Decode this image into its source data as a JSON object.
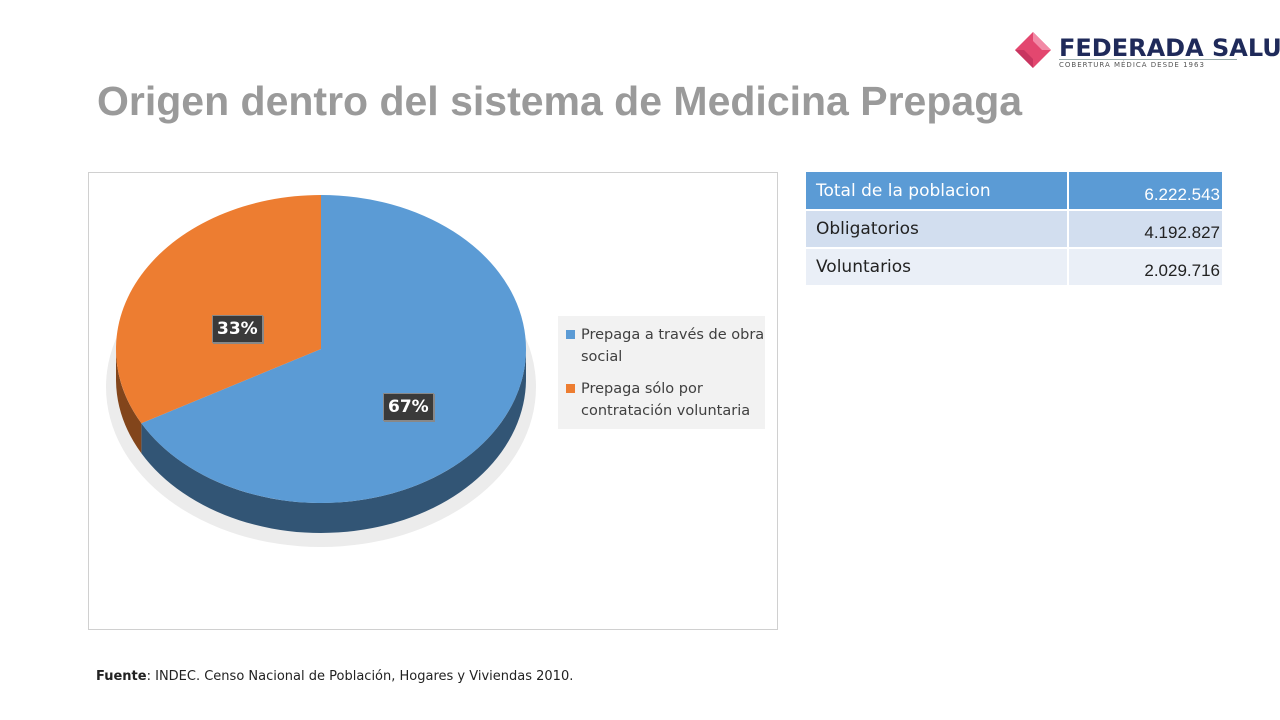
{
  "title": "Origen dentro del sistema de Medicina Prepaga",
  "logo": {
    "name": "FEDERADA SALUD",
    "tagline": "COBERTURA MÉDICA DESDE 1963",
    "colors": [
      "#e3476f",
      "#f28aa6"
    ]
  },
  "chart_data": {
    "type": "pie",
    "title": "",
    "categories": [
      "Prepaga a través de obra social",
      "Prepaga sólo por contratación voluntaria"
    ],
    "values": [
      67,
      33
    ],
    "data_labels": [
      "67%",
      "33%"
    ],
    "colors": [
      "#5b9bd5",
      "#ed7d31"
    ],
    "legend_placement": "right",
    "style": "3d"
  },
  "table": {
    "rows": [
      {
        "label": "Total de la poblacion",
        "value": "6.222.543"
      },
      {
        "label": "Obligatorios",
        "value": "4.192.827"
      },
      {
        "label": "Voluntarios",
        "value": "2.029.716"
      }
    ]
  },
  "source": {
    "prefix": "Fuente",
    "text": ": INDEC. Censo Nacional de Población, Hogares y Viviendas 2010."
  }
}
